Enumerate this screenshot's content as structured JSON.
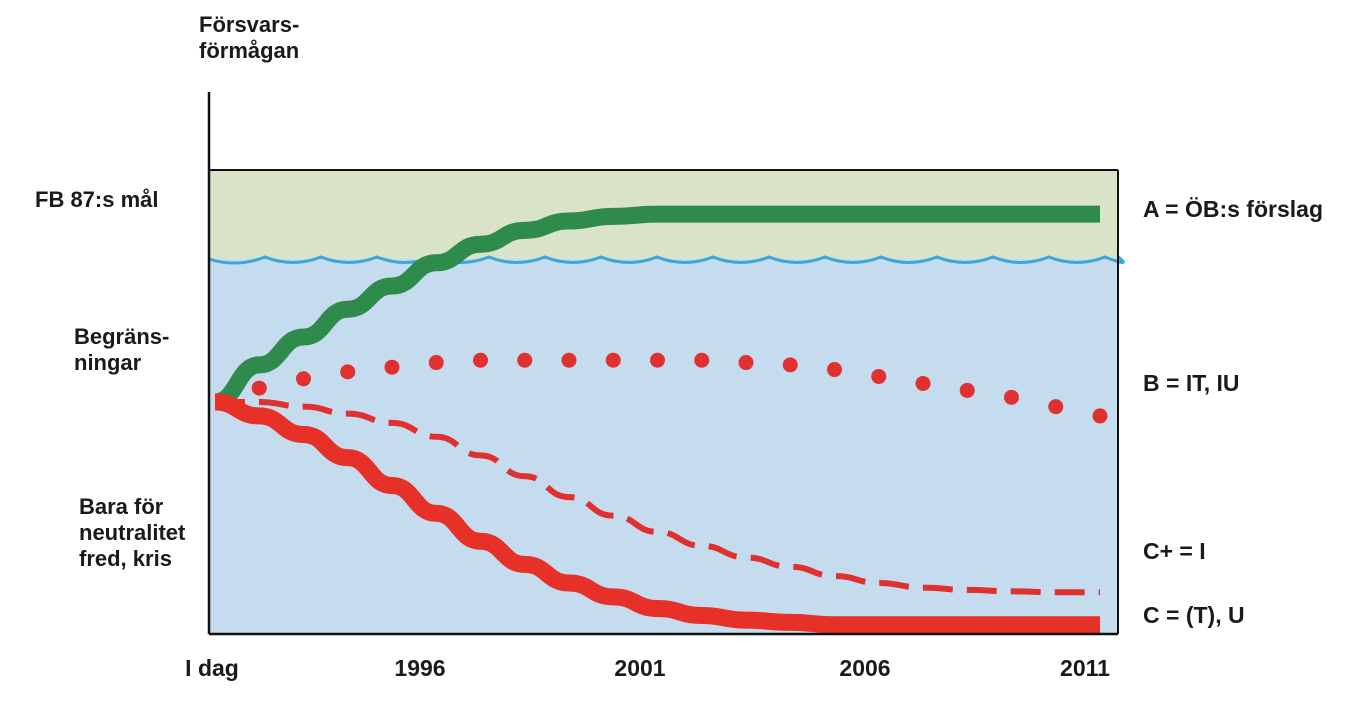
{
  "chart_data": {
    "type": "line",
    "ylabel": "Försvars-\nförmågan",
    "x_ticks": [
      "I dag",
      "1996",
      "2001",
      "2006",
      "2011"
    ],
    "y_levels": [
      "FB 87:s mål",
      "Begräns-\nningar",
      "Bara för\nneutralitet\nfred, kris"
    ],
    "grid": false,
    "legend": "right",
    "zones": [
      {
        "name": "upper-zone",
        "color": "#d9e3c7"
      },
      {
        "name": "lower-zone",
        "color": "#c4dced"
      }
    ],
    "boundary_color": "#3aa6dc",
    "series": [
      {
        "name": "A = ÖB:s förslag",
        "style": "solid-thick",
        "color": "#2e8b4c",
        "x": [
          1991,
          1992,
          1993,
          1994,
          1995,
          1996,
          1997,
          1998,
          1999,
          2000,
          2001,
          2003,
          2006,
          2009,
          2011
        ],
        "y": [
          50,
          58,
          64,
          70,
          75,
          80,
          84,
          87,
          89,
          90,
          90.5,
          90.5,
          90.5,
          90.5,
          90.5
        ]
      },
      {
        "name": "B = IT, IU",
        "style": "dotted",
        "color": "#e03030",
        "x": [
          1991,
          1992,
          1993,
          1994,
          1995,
          1996,
          1997,
          1998,
          1999,
          2000,
          2001,
          2002,
          2003,
          2004,
          2005,
          2006,
          2007,
          2008,
          2009,
          2010,
          2011
        ],
        "y": [
          50,
          53,
          55,
          56.5,
          57.5,
          58.5,
          59,
          59,
          59,
          59,
          59,
          59,
          58.5,
          58,
          57,
          55.5,
          54,
          52.5,
          51,
          49,
          47
        ]
      },
      {
        "name": "C+ = I",
        "style": "dashed",
        "color": "#e03030",
        "x": [
          1991,
          1992,
          1993,
          1994,
          1995,
          1996,
          1997,
          1998,
          1999,
          2000,
          2001,
          2002,
          2003,
          2004,
          2005,
          2006,
          2007,
          2008,
          2009,
          2010,
          2011
        ],
        "y": [
          50,
          50,
          49,
          47.5,
          45.5,
          42.5,
          38.5,
          34,
          29.5,
          25.5,
          22,
          19,
          16.5,
          14.5,
          12.5,
          11,
          10,
          9.5,
          9.2,
          9,
          9
        ]
      },
      {
        "name": "C = (T), U",
        "style": "solid-thick",
        "color": "#e63028",
        "x": [
          1991,
          1992,
          1993,
          1994,
          1995,
          1996,
          1997,
          1998,
          1999,
          2000,
          2001,
          2002,
          2003,
          2004,
          2005,
          2006,
          2007,
          2008,
          2009,
          2010,
          2011
        ],
        "y": [
          50,
          47,
          43,
          38,
          32,
          26,
          20,
          15,
          11,
          8,
          5.5,
          4,
          3,
          2.5,
          2,
          2,
          2,
          2,
          2,
          2,
          2
        ]
      }
    ]
  }
}
